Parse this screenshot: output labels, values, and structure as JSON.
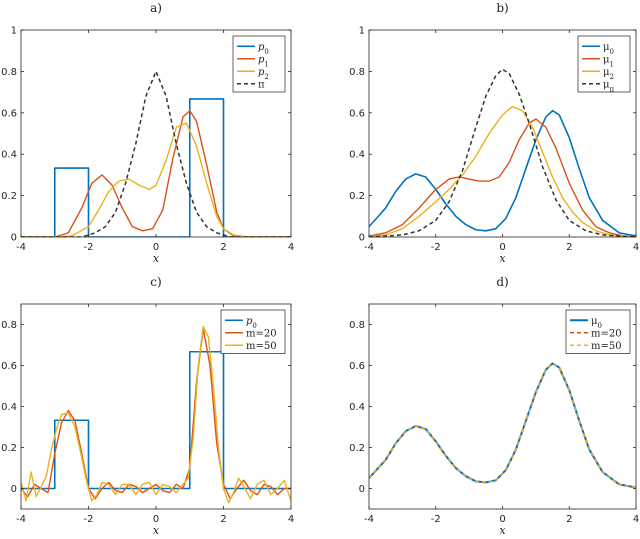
{
  "chart_data": [
    {
      "type": "line",
      "panel": "a)",
      "title": "a)",
      "xlabel": "x",
      "xlim": [
        -4,
        4
      ],
      "ylim": [
        0,
        1
      ],
      "xticks": [
        "-4",
        "-2",
        "0",
        "2",
        "4"
      ],
      "yticks": [
        "0",
        "0.2",
        "0.4",
        "0.6",
        "0.8",
        "1"
      ],
      "legend_position": "top-right",
      "series": [
        {
          "name": "p0",
          "label_main": "p",
          "label_sub": "0",
          "italic": true,
          "color": "#0072BD",
          "dash": "solid",
          "width": 1.6,
          "x": [
            -4,
            -3,
            -3,
            -2,
            -2,
            1,
            1,
            2,
            2,
            4
          ],
          "y": [
            0,
            0,
            0.333,
            0.333,
            0,
            0,
            0.667,
            0.667,
            0,
            0
          ]
        },
        {
          "name": "p1",
          "label_main": "p",
          "label_sub": "1",
          "italic": true,
          "color": "#D95319",
          "dash": "solid",
          "width": 1.4,
          "x": [
            -4,
            -3,
            -2.6,
            -2.2,
            -1.9,
            -1.6,
            -1.3,
            -1.0,
            -0.7,
            -0.4,
            -0.1,
            0.2,
            0.5,
            0.8,
            1.0,
            1.2,
            1.5,
            1.8,
            2.0,
            2.3,
            2.6,
            3,
            4
          ],
          "y": [
            0,
            0,
            0.02,
            0.14,
            0.26,
            0.3,
            0.25,
            0.14,
            0.05,
            0.03,
            0.04,
            0.13,
            0.38,
            0.58,
            0.61,
            0.56,
            0.35,
            0.12,
            0.04,
            0.005,
            0,
            0,
            0
          ]
        },
        {
          "name": "p2",
          "label_main": "p",
          "label_sub": "2",
          "italic": true,
          "color": "#EDB120",
          "dash": "solid",
          "width": 1.4,
          "x": [
            -4,
            -3,
            -2.5,
            -2.0,
            -1.7,
            -1.4,
            -1.1,
            -0.8,
            -0.5,
            -0.2,
            0.0,
            0.3,
            0.6,
            0.9,
            1.2,
            1.5,
            1.8,
            2.0,
            2.3,
            2.7,
            3,
            4
          ],
          "y": [
            0,
            0,
            0.005,
            0.05,
            0.13,
            0.22,
            0.27,
            0.28,
            0.25,
            0.23,
            0.25,
            0.37,
            0.53,
            0.55,
            0.44,
            0.26,
            0.1,
            0.04,
            0.01,
            0,
            0,
            0
          ]
        },
        {
          "name": "π",
          "label_main": "π",
          "label_sub": "",
          "italic": false,
          "color": "#333333",
          "dash": "4,3",
          "width": 1.5,
          "x": [
            -4,
            -2.2,
            -1.8,
            -1.5,
            -1.2,
            -0.9,
            -0.6,
            -0.3,
            0,
            0.3,
            0.6,
            0.9,
            1.2,
            1.5,
            1.8,
            2.2,
            4
          ],
          "y": [
            0,
            0,
            0.02,
            0.05,
            0.12,
            0.26,
            0.45,
            0.68,
            0.8,
            0.68,
            0.45,
            0.26,
            0.12,
            0.05,
            0.02,
            0,
            0
          ]
        }
      ]
    },
    {
      "type": "line",
      "panel": "b)",
      "title": "b)",
      "xlabel": "x",
      "xlim": [
        -4,
        4
      ],
      "ylim": [
        0,
        1
      ],
      "xticks": [
        "-4",
        "-2",
        "0",
        "2",
        "4"
      ],
      "yticks": [
        "0",
        "0.2",
        "0.4",
        "0.6",
        "0.8",
        "1"
      ],
      "legend_position": "top-right",
      "series": [
        {
          "name": "μ0",
          "label_main": "μ",
          "label_sub": "0",
          "italic": false,
          "color": "#0072BD",
          "dash": "solid",
          "width": 1.6,
          "x": [
            -4,
            -3.5,
            -3.2,
            -2.9,
            -2.6,
            -2.3,
            -2.0,
            -1.7,
            -1.4,
            -1.1,
            -0.8,
            -0.5,
            -0.2,
            0.1,
            0.4,
            0.7,
            1.0,
            1.3,
            1.5,
            1.7,
            2.0,
            2.3,
            2.6,
            3.0,
            3.5,
            4
          ],
          "y": [
            0.05,
            0.14,
            0.22,
            0.28,
            0.305,
            0.29,
            0.23,
            0.16,
            0.1,
            0.06,
            0.035,
            0.03,
            0.04,
            0.09,
            0.19,
            0.33,
            0.47,
            0.58,
            0.61,
            0.59,
            0.48,
            0.33,
            0.19,
            0.08,
            0.02,
            0.005
          ]
        },
        {
          "name": "μ1",
          "label_main": "μ",
          "label_sub": "1",
          "italic": false,
          "color": "#D95319",
          "dash": "solid",
          "width": 1.4,
          "x": [
            -4,
            -3.5,
            -3.0,
            -2.5,
            -2.0,
            -1.6,
            -1.3,
            -1.0,
            -0.7,
            -0.4,
            -0.1,
            0.2,
            0.5,
            0.8,
            1.0,
            1.3,
            1.6,
            2.0,
            2.4,
            2.8,
            3.2,
            3.6,
            4
          ],
          "y": [
            0.005,
            0.02,
            0.06,
            0.14,
            0.23,
            0.28,
            0.29,
            0.28,
            0.27,
            0.27,
            0.29,
            0.36,
            0.47,
            0.55,
            0.57,
            0.53,
            0.43,
            0.26,
            0.13,
            0.05,
            0.02,
            0.005,
            0
          ]
        },
        {
          "name": "μ2",
          "label_main": "μ",
          "label_sub": "2",
          "italic": false,
          "color": "#EDB120",
          "dash": "solid",
          "width": 1.4,
          "x": [
            -4,
            -3.5,
            -3.0,
            -2.5,
            -2.0,
            -1.6,
            -1.2,
            -0.8,
            -0.4,
            0.0,
            0.3,
            0.6,
            0.9,
            1.2,
            1.5,
            1.8,
            2.1,
            2.4,
            2.8,
            3.2,
            3.6,
            4
          ],
          "y": [
            0,
            0.01,
            0.04,
            0.1,
            0.17,
            0.23,
            0.3,
            0.39,
            0.5,
            0.59,
            0.63,
            0.61,
            0.53,
            0.41,
            0.29,
            0.19,
            0.12,
            0.07,
            0.03,
            0.01,
            0.003,
            0
          ]
        },
        {
          "name": "μπ",
          "label_main": "μ",
          "label_sub": "π",
          "italic": false,
          "color": "#333333",
          "dash": "4,3",
          "width": 1.5,
          "x": [
            -4,
            -3.0,
            -2.5,
            -2.0,
            -1.6,
            -1.2,
            -0.8,
            -0.5,
            -0.2,
            0.0,
            0.2,
            0.5,
            0.8,
            1.2,
            1.6,
            2.0,
            2.5,
            3.0,
            4
          ],
          "y": [
            0,
            0.01,
            0.03,
            0.08,
            0.17,
            0.32,
            0.53,
            0.68,
            0.78,
            0.81,
            0.79,
            0.69,
            0.55,
            0.34,
            0.18,
            0.08,
            0.03,
            0.01,
            0
          ]
        }
      ]
    },
    {
      "type": "line",
      "panel": "c)",
      "title": "c)",
      "xlabel": "x",
      "xlim": [
        -4,
        4
      ],
      "ylim": [
        -0.1,
        0.9
      ],
      "xticks": [
        "-4",
        "-2",
        "0",
        "2",
        "4"
      ],
      "yticks": [
        "0",
        "0.2",
        "0.4",
        "0.6",
        "0.8"
      ],
      "legend_position": "top-right",
      "series": [
        {
          "name": "p0",
          "label_main": "p",
          "label_sub": "0",
          "italic": true,
          "color": "#0072BD",
          "dash": "solid",
          "width": 1.6,
          "x": [
            -4,
            -3,
            -3,
            -2,
            -2,
            1,
            1,
            2,
            2,
            4
          ],
          "y": [
            0,
            0,
            0.333,
            0.333,
            0,
            0,
            0.667,
            0.667,
            0,
            0
          ]
        },
        {
          "name": "m=20",
          "label_main": "m=20",
          "label_sub": "",
          "italic": false,
          "color": "#D95319",
          "dash": "solid",
          "width": 1.4,
          "x": [
            -4,
            -3.8,
            -3.6,
            -3.4,
            -3.2,
            -3.0,
            -2.8,
            -2.6,
            -2.4,
            -2.2,
            -2.0,
            -1.8,
            -1.6,
            -1.4,
            -1.2,
            -1.0,
            -0.8,
            -0.6,
            -0.4,
            -0.2,
            0.0,
            0.2,
            0.4,
            0.6,
            0.8,
            1.0,
            1.2,
            1.4,
            1.6,
            1.8,
            2.0,
            2.2,
            2.4,
            2.6,
            2.8,
            3.0,
            3.2,
            3.4,
            3.6,
            3.8,
            4.0
          ],
          "y": [
            0.0,
            -0.04,
            0.02,
            0.0,
            -0.02,
            0.17,
            0.32,
            0.38,
            0.33,
            0.17,
            0.0,
            -0.05,
            0.0,
            0.03,
            -0.01,
            -0.02,
            0.02,
            0.01,
            -0.02,
            0.0,
            0.02,
            -0.01,
            -0.02,
            0.02,
            0.0,
            0.1,
            0.52,
            0.78,
            0.6,
            0.22,
            0.02,
            -0.05,
            0.0,
            0.04,
            -0.01,
            -0.03,
            0.02,
            0.01,
            -0.03,
            0.0,
            0.0
          ]
        },
        {
          "name": "m=50",
          "label_main": "m=50",
          "label_sub": "",
          "italic": false,
          "color": "#EDB120",
          "dash": "solid",
          "width": 1.4,
          "x": [
            -4,
            -3.85,
            -3.7,
            -3.55,
            -3.4,
            -3.25,
            -3.1,
            -2.95,
            -2.8,
            -2.6,
            -2.4,
            -2.2,
            -2.05,
            -1.9,
            -1.75,
            -1.6,
            -1.4,
            -1.2,
            -1.0,
            -0.8,
            -0.6,
            -0.4,
            -0.2,
            0.0,
            0.2,
            0.4,
            0.6,
            0.8,
            0.95,
            1.1,
            1.25,
            1.4,
            1.55,
            1.7,
            1.85,
            2.0,
            2.15,
            2.3,
            2.45,
            2.6,
            2.8,
            3.0,
            3.2,
            3.4,
            3.6,
            3.8,
            4.0
          ],
          "y": [
            0.03,
            -0.06,
            0.08,
            -0.04,
            0.01,
            0.06,
            0.19,
            0.29,
            0.36,
            0.37,
            0.3,
            0.15,
            0.03,
            -0.06,
            -0.03,
            0.03,
            0.02,
            -0.03,
            0.02,
            0.02,
            -0.03,
            0.02,
            0.03,
            -0.03,
            0.02,
            0.01,
            -0.02,
            0.02,
            0.05,
            0.24,
            0.6,
            0.79,
            0.74,
            0.5,
            0.2,
            0.0,
            -0.07,
            -0.02,
            0.05,
            0.01,
            -0.05,
            0.02,
            0.04,
            -0.03,
            0.0,
            0.04,
            -0.06
          ]
        }
      ]
    },
    {
      "type": "line",
      "panel": "d)",
      "title": "d)",
      "xlabel": "x",
      "xlim": [
        -4,
        4
      ],
      "ylim": [
        -0.1,
        0.9
      ],
      "xticks": [
        "-4",
        "-2",
        "0",
        "2",
        "4"
      ],
      "yticks": [
        "0",
        "0.2",
        "0.4",
        "0.6",
        "0.8"
      ],
      "legend_position": "top-right",
      "series": [
        {
          "name": "μ0",
          "label_main": "μ",
          "label_sub": "0",
          "italic": false,
          "color": "#0072BD",
          "dash": "solid",
          "width": 2.0,
          "x": [
            -4,
            -3.5,
            -3.2,
            -2.9,
            -2.6,
            -2.3,
            -2.0,
            -1.7,
            -1.4,
            -1.1,
            -0.8,
            -0.5,
            -0.2,
            0.1,
            0.4,
            0.7,
            1.0,
            1.3,
            1.5,
            1.7,
            2.0,
            2.3,
            2.6,
            3.0,
            3.5,
            4
          ],
          "y": [
            0.05,
            0.14,
            0.22,
            0.28,
            0.305,
            0.29,
            0.23,
            0.16,
            0.1,
            0.06,
            0.035,
            0.03,
            0.04,
            0.09,
            0.19,
            0.33,
            0.47,
            0.58,
            0.61,
            0.59,
            0.48,
            0.33,
            0.19,
            0.08,
            0.02,
            0.005
          ]
        },
        {
          "name": "m=20",
          "label_main": "m=20",
          "label_sub": "",
          "italic": false,
          "color": "#D95319",
          "dash": "4,3",
          "width": 1.4,
          "x": [
            -4,
            -3.5,
            -3.2,
            -2.9,
            -2.6,
            -2.3,
            -2.0,
            -1.7,
            -1.4,
            -1.1,
            -0.8,
            -0.5,
            -0.2,
            0.1,
            0.4,
            0.7,
            1.0,
            1.3,
            1.5,
            1.7,
            2.0,
            2.3,
            2.6,
            3.0,
            3.5,
            4
          ],
          "y": [
            0.05,
            0.14,
            0.22,
            0.28,
            0.305,
            0.29,
            0.23,
            0.16,
            0.1,
            0.06,
            0.035,
            0.03,
            0.04,
            0.09,
            0.19,
            0.33,
            0.47,
            0.58,
            0.61,
            0.59,
            0.48,
            0.33,
            0.19,
            0.08,
            0.02,
            0.005
          ]
        },
        {
          "name": "m=50",
          "label_main": "m=50",
          "label_sub": "",
          "italic": false,
          "color": "#EDB120",
          "dash": "4,3",
          "width": 1.4,
          "x": [
            -4,
            -3.5,
            -3.2,
            -2.9,
            -2.6,
            -2.3,
            -2.0,
            -1.7,
            -1.4,
            -1.1,
            -0.8,
            -0.5,
            -0.2,
            0.1,
            0.4,
            0.7,
            1.0,
            1.3,
            1.5,
            1.7,
            2.0,
            2.3,
            2.6,
            3.0,
            3.5,
            4
          ],
          "y": [
            0.05,
            0.14,
            0.22,
            0.28,
            0.305,
            0.29,
            0.23,
            0.16,
            0.1,
            0.06,
            0.035,
            0.03,
            0.04,
            0.09,
            0.19,
            0.33,
            0.47,
            0.58,
            0.61,
            0.59,
            0.48,
            0.33,
            0.19,
            0.08,
            0.02,
            0.005
          ]
        }
      ]
    }
  ]
}
